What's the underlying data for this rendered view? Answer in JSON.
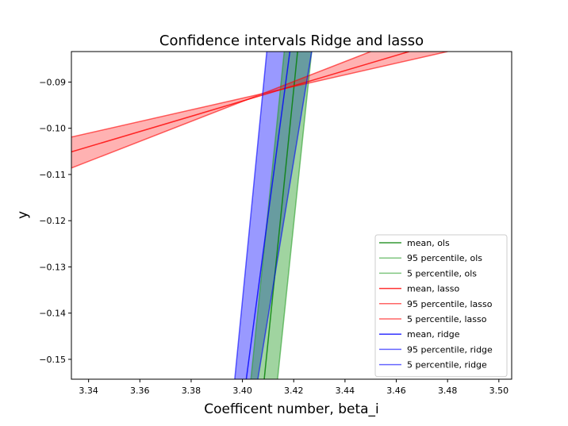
{
  "chart_data": {
    "type": "line",
    "title": "Confidence intervals Ridge and lasso",
    "xlabel": "Coefficent number, beta_i",
    "ylabel": "y",
    "xlim": [
      3.3333,
      3.505
    ],
    "ylim": [
      -0.1543,
      -0.0834
    ],
    "xticks": [
      3.34,
      3.36,
      3.38,
      3.4,
      3.42,
      3.44,
      3.46,
      3.48,
      3.5
    ],
    "xtick_labels": [
      "3.34",
      "3.36",
      "3.38",
      "3.40",
      "3.42",
      "3.44",
      "3.46",
      "3.48",
      "3.50"
    ],
    "yticks": [
      -0.15,
      -0.14,
      -0.13,
      -0.12,
      -0.11,
      -0.1,
      -0.09
    ],
    "ytick_labels": [
      "−0.15",
      "−0.14",
      "−0.13",
      "−0.12",
      "−0.11",
      "−0.10",
      "−0.09"
    ],
    "grid": false,
    "legend_position": "lower-right",
    "series": [
      {
        "name": "mean, ols",
        "color": "#008000",
        "alpha": 0.8,
        "x": [
          3.4085,
          3.4215
        ],
        "y": [
          -0.1543,
          -0.0834
        ]
      },
      {
        "name": "95 percentile, ols",
        "color": "#2ca02c",
        "alpha": 0.6,
        "x": [
          3.4137,
          3.427
        ],
        "y": [
          -0.1543,
          -0.0834
        ]
      },
      {
        "name": "5 percentile, ols",
        "color": "#2ca02c",
        "alpha": 0.6,
        "x": [
          3.4033,
          3.4163
        ],
        "y": [
          -0.1543,
          -0.0834
        ]
      },
      {
        "name": "mean, lasso",
        "color": "#ff0000",
        "alpha": 0.8,
        "x": [
          3.3333,
          3.465
        ],
        "y": [
          -0.1051,
          -0.0834
        ]
      },
      {
        "name": "95 percentile, lasso",
        "color": "#ff0000",
        "alpha": 0.6,
        "x": [
          3.3333,
          3.48
        ],
        "y": [
          -0.1019,
          -0.0834
        ]
      },
      {
        "name": "5 percentile, lasso",
        "color": "#ff0000",
        "alpha": 0.6,
        "x": [
          3.3333,
          3.45
        ],
        "y": [
          -0.1086,
          -0.0834
        ]
      },
      {
        "name": "mean, ridge",
        "color": "#0000ff",
        "alpha": 0.8,
        "x": [
          3.4015,
          3.4185
        ],
        "y": [
          -0.1543,
          -0.0834
        ]
      },
      {
        "name": "95 percentile, ridge",
        "color": "#0000ff",
        "alpha": 0.6,
        "x": [
          3.406,
          3.427
        ],
        "y": [
          -0.1543,
          -0.0834
        ]
      },
      {
        "name": "5 percentile, ridge",
        "color": "#0000ff",
        "alpha": 0.6,
        "x": [
          3.397,
          3.4095
        ],
        "y": [
          -0.1543,
          -0.0834
        ]
      }
    ],
    "bands": [
      {
        "name": "ridge-band",
        "color": "#0000ff",
        "alpha": 0.4,
        "lower": "5 percentile, ridge",
        "upper": "95 percentile, ridge"
      },
      {
        "name": "ols-band",
        "color": "#2ca02c",
        "alpha": 0.45,
        "lower": "5 percentile, ols",
        "upper": "95 percentile, ols"
      },
      {
        "name": "lasso-band",
        "color": "#ff0000",
        "alpha": 0.3,
        "lower": "5 percentile, lasso",
        "upper": "95 percentile, lasso"
      }
    ]
  }
}
